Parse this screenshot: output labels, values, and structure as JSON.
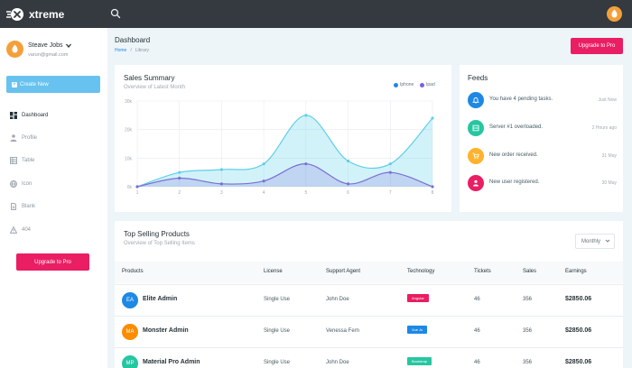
{
  "app": {
    "name": "xtreme"
  },
  "user": {
    "name": "Steave Jobs",
    "email": "varun@gmail.com"
  },
  "sidebar": {
    "create_label": "Create New",
    "items": [
      {
        "label": "Dashboard",
        "icon": "grid-icon",
        "active": true
      },
      {
        "label": "Profile",
        "icon": "person-icon",
        "active": false
      },
      {
        "label": "Table",
        "icon": "table-icon",
        "active": false
      },
      {
        "label": "Icon",
        "icon": "globe-icon",
        "active": false
      },
      {
        "label": "Blank",
        "icon": "document-icon",
        "active": false
      },
      {
        "label": "404",
        "icon": "warning-icon",
        "active": false
      }
    ],
    "upgrade_label": "Upgrade to Pro"
  },
  "header": {
    "title": "Dashboard",
    "breadcrumb": {
      "home": "Home",
      "current": "Library"
    },
    "upgrade_label": "Upgrade to Pro"
  },
  "sales": {
    "title": "Sales Summary",
    "subtitle": "Overview of Latest Month",
    "legend": [
      {
        "name": "Iphone",
        "color": "#1e88e5"
      },
      {
        "name": "Ipad",
        "color": "#7460ee"
      }
    ]
  },
  "chart_data": {
    "type": "area",
    "x": [
      1,
      2,
      3,
      4,
      5,
      6,
      7,
      8
    ],
    "y_ticks": [
      "30k",
      "20k",
      "10k",
      "0k"
    ],
    "ylim": [
      0,
      30000
    ],
    "series": [
      {
        "name": "Iphone",
        "color": "#5fcfe8",
        "values": [
          0,
          5000,
          6000,
          8000,
          25000,
          9000,
          8000,
          24000
        ]
      },
      {
        "name": "Ipad",
        "color": "#7b6fd6",
        "values": [
          0,
          3000,
          1000,
          2000,
          8000,
          1000,
          5000,
          0
        ]
      }
    ],
    "grid": true
  },
  "feeds": {
    "title": "Feeds",
    "items": [
      {
        "text": "You have 4 pending tasks.",
        "time": "Just Now",
        "color": "#1e88e5",
        "icon": "bell-icon"
      },
      {
        "text": "Server #1 overloaded.",
        "time": "2 Hours ago",
        "color": "#26c6a0",
        "icon": "server-icon"
      },
      {
        "text": "New order received.",
        "time": "31 May",
        "color": "#ffb22b",
        "icon": "cart-icon"
      },
      {
        "text": "New user registered.",
        "time": "30 May",
        "color": "#e91e63",
        "icon": "user-icon"
      }
    ]
  },
  "products": {
    "title": "Top Selling Products",
    "subtitle": "Overview of Top Selling Items",
    "filter": "Monthly",
    "columns": [
      "Products",
      "License",
      "Support Agent",
      "Technology",
      "Tickets",
      "Sales",
      "Earnings"
    ],
    "rows": [
      {
        "initials": "EA",
        "avatar_color": "#1e88e5",
        "name": "Elite Admin",
        "license": "Single Use",
        "agent": "John Doe",
        "tech": "Angular",
        "tech_color": "#e91e63",
        "tickets": "46",
        "sales": "356",
        "earnings": "$2850.06"
      },
      {
        "initials": "MA",
        "avatar_color": "#fb8c00",
        "name": "Monster Admin",
        "license": "Single Use",
        "agent": "Venessa Fern",
        "tech": "Vue Js",
        "tech_color": "#1e88e5",
        "tickets": "46",
        "sales": "356",
        "earnings": "$2850.06"
      },
      {
        "initials": "MP",
        "avatar_color": "#26c6a0",
        "name": "Material Pro Admin",
        "license": "Single Use",
        "agent": "John Doe",
        "tech": "Bootstrap",
        "tech_color": "#26c6a0",
        "tickets": "46",
        "sales": "356",
        "earnings": "$2850.06"
      }
    ]
  }
}
